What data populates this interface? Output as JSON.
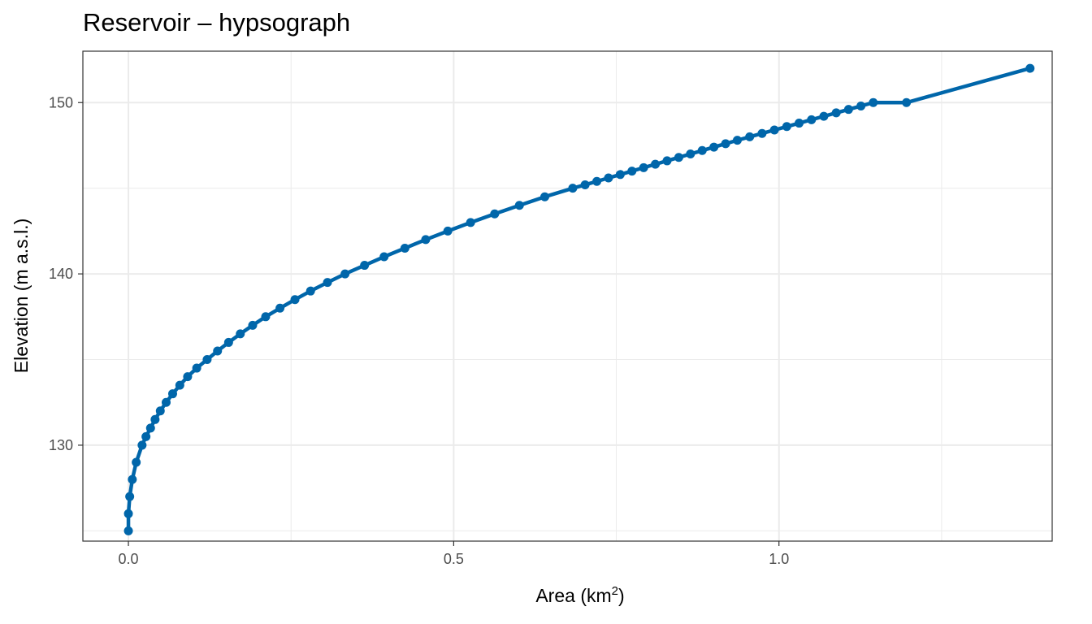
{
  "chart_data": {
    "type": "line",
    "title": "Reservoir – hypsograph",
    "xlabel_main": "Area (km",
    "xlabel_sup": "2",
    "xlabel_end": ")",
    "ylabel": "Elevation (m a.s.l.)",
    "xlim": [
      -0.07,
      1.42
    ],
    "ylim": [
      124.4,
      153.0
    ],
    "x_ticks": [
      0.0,
      0.5,
      1.0
    ],
    "x_tick_labels": [
      "0.0",
      "0.5",
      "1.0"
    ],
    "y_ticks": [
      130,
      140,
      150
    ],
    "y_tick_labels": [
      "130",
      "140",
      "150"
    ],
    "grid": true,
    "series": [
      {
        "color": "#0066aa",
        "points": [
          [
            0.0,
            125.0
          ],
          [
            0.0,
            126.0
          ],
          [
            0.002,
            127.0
          ],
          [
            0.006,
            128.0
          ],
          [
            0.012,
            129.0
          ],
          [
            0.021,
            130.0
          ],
          [
            0.027,
            130.5
          ],
          [
            0.034,
            131.0
          ],
          [
            0.041,
            131.5
          ],
          [
            0.049,
            132.0
          ],
          [
            0.058,
            132.5
          ],
          [
            0.068,
            133.0
          ],
          [
            0.079,
            133.5
          ],
          [
            0.091,
            134.0
          ],
          [
            0.105,
            134.5
          ],
          [
            0.121,
            135.0
          ],
          [
            0.137,
            135.5
          ],
          [
            0.154,
            136.0
          ],
          [
            0.172,
            136.5
          ],
          [
            0.191,
            137.0
          ],
          [
            0.211,
            137.5
          ],
          [
            0.233,
            138.0
          ],
          [
            0.256,
            138.5
          ],
          [
            0.28,
            139.0
          ],
          [
            0.306,
            139.5
          ],
          [
            0.333,
            140.0
          ],
          [
            0.363,
            140.5
          ],
          [
            0.393,
            141.0
          ],
          [
            0.425,
            141.5
          ],
          [
            0.457,
            142.0
          ],
          [
            0.491,
            142.5
          ],
          [
            0.526,
            143.0
          ],
          [
            0.563,
            143.5
          ],
          [
            0.601,
            144.0
          ],
          [
            0.64,
            144.5
          ],
          [
            0.683,
            145.0
          ],
          [
            0.702,
            145.2
          ],
          [
            0.72,
            145.4
          ],
          [
            0.738,
            145.6
          ],
          [
            0.756,
            145.8
          ],
          [
            0.774,
            146.0
          ],
          [
            0.792,
            146.2
          ],
          [
            0.81,
            146.4
          ],
          [
            0.828,
            146.6
          ],
          [
            0.846,
            146.8
          ],
          [
            0.864,
            147.0
          ],
          [
            0.882,
            147.2
          ],
          [
            0.9,
            147.4
          ],
          [
            0.918,
            147.6
          ],
          [
            0.936,
            147.8
          ],
          [
            0.955,
            148.0
          ],
          [
            0.974,
            148.2
          ],
          [
            0.993,
            148.4
          ],
          [
            1.012,
            148.6
          ],
          [
            1.031,
            148.8
          ],
          [
            1.05,
            149.0
          ],
          [
            1.069,
            149.2
          ],
          [
            1.088,
            149.4
          ],
          [
            1.107,
            149.6
          ],
          [
            1.126,
            149.8
          ],
          [
            1.145,
            150.0
          ],
          [
            1.196,
            150.0
          ],
          [
            1.386,
            152.0
          ]
        ]
      }
    ]
  }
}
